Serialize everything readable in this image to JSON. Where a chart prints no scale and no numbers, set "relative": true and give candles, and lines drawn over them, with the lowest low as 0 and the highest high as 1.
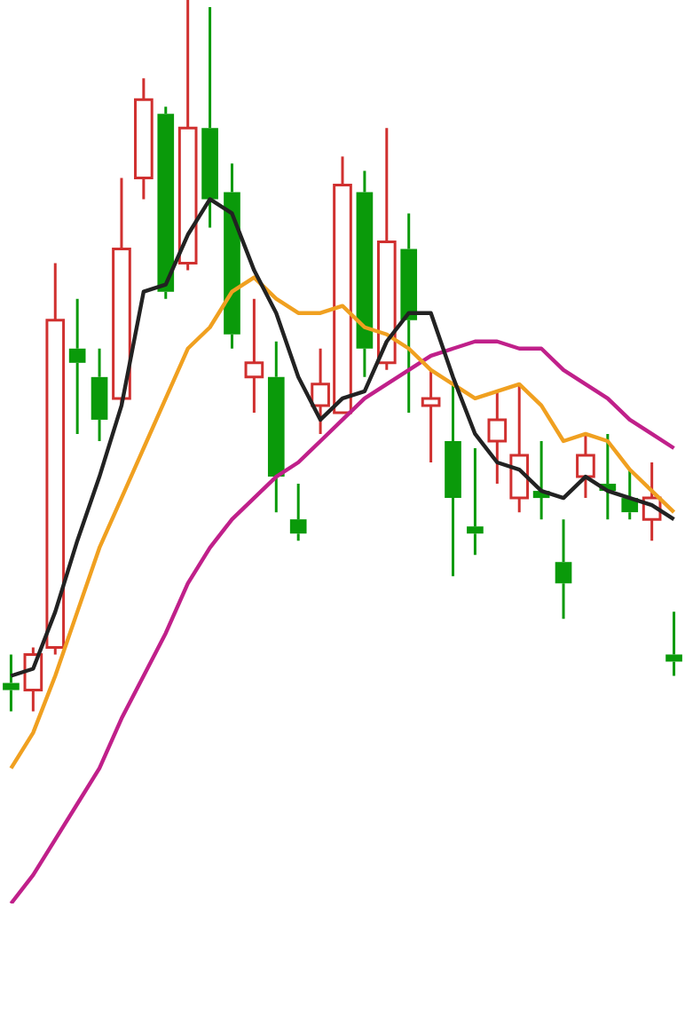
{
  "chart_data": {
    "type": "candlestick",
    "relative": true,
    "categories": [
      null,
      null,
      null,
      null,
      null,
      null,
      null,
      null,
      null,
      null,
      null,
      null,
      null,
      null,
      null,
      null,
      null,
      null,
      null,
      null,
      null,
      null,
      null,
      null,
      null,
      null,
      null,
      null,
      null,
      null,
      null
    ],
    "ohlc": [
      [
        0.04,
        0.08,
        0,
        0.03
      ],
      [
        0.03,
        0.09,
        0,
        0.08
      ],
      [
        0.09,
        0.63,
        0.08,
        0.55
      ],
      [
        0.51,
        0.58,
        0.39,
        0.49
      ],
      [
        0.47,
        0.51,
        0.38,
        0.41
      ],
      [
        0.44,
        0.75,
        0.43,
        0.65
      ],
      [
        0.75,
        0.89,
        0.72,
        0.86
      ],
      [
        0.84,
        0.85,
        0.58,
        0.59
      ],
      [
        0.63,
        1,
        0.62,
        0.82
      ],
      [
        0.82,
        0.99,
        0.68,
        0.72
      ],
      [
        0.73,
        0.77,
        0.51,
        0.53
      ],
      [
        0.47,
        0.58,
        0.42,
        0.49
      ],
      [
        0.47,
        0.52,
        0.28,
        0.33
      ],
      [
        0.27,
        0.32,
        0.24,
        0.25
      ],
      [
        0.43,
        0.51,
        0.39,
        0.46
      ],
      [
        0.42,
        0.78,
        0.42,
        0.74
      ],
      [
        0.73,
        0.76,
        0.47,
        0.51
      ],
      [
        0.49,
        0.82,
        0.48,
        0.66
      ],
      [
        0.65,
        0.7,
        0.42,
        0.55
      ],
      [
        0.43,
        0.48,
        0.35,
        0.44
      ],
      [
        0.38,
        0.46,
        0.19,
        0.3
      ],
      [
        0.26,
        0.37,
        0.22,
        0.25
      ],
      [
        0.38,
        0.45,
        0.32,
        0.41
      ],
      [
        0.3,
        0.46,
        0.28,
        0.36
      ],
      [
        0.31,
        0.38,
        0.27,
        0.3
      ],
      [
        0.21,
        0.27,
        0.13,
        0.18
      ],
      [
        0.33,
        0.39,
        0.3,
        0.36
      ],
      [
        0.32,
        0.39,
        0.27,
        0.31
      ],
      [
        0.3,
        0.34,
        0.27,
        0.28
      ],
      [
        0.27,
        0.35,
        0.24,
        0.3
      ],
      [
        0.08,
        0.14,
        0.05,
        0.07
      ]
    ],
    "colors": [
      "#0a9a0a",
      "#d0302f",
      "#d0302f",
      "#0a9a0a",
      "#0a9a0a",
      "#d0302f",
      "#d0302f",
      "#0a9a0a",
      "#d0302f",
      "#0a9a0a",
      "#0a9a0a",
      "#d0302f",
      "#0a9a0a",
      "#0a9a0a",
      "#d0302f",
      "#d0302f",
      "#0a9a0a",
      "#d0302f",
      "#0a9a0a",
      "#d0302f",
      "#0a9a0a",
      "#0a9a0a",
      "#d0302f",
      "#d0302f",
      "#0a9a0a",
      "#0a9a0a",
      "#d0302f",
      "#0a9a0a",
      "#0a9a0a",
      "#d0302f",
      "#0a9a0a"
    ],
    "series": [
      {
        "type": "line",
        "color": "#222222",
        "values": [
          0.05,
          0.06,
          0.14,
          0.24,
          0.33,
          0.43,
          0.59,
          0.6,
          0.67,
          0.72,
          0.7,
          0.62,
          0.56,
          0.47,
          0.41,
          0.44,
          0.45,
          0.52,
          0.56,
          0.56,
          0.47,
          0.39,
          0.35,
          0.34,
          0.31,
          0.3,
          0.33,
          0.31,
          0.3,
          0.29,
          0.27
        ]
      },
      {
        "type": "line",
        "color": "#f0a020",
        "values": [
          -0.08,
          -0.03,
          0.05,
          0.14,
          0.23,
          0.3,
          0.37,
          0.44,
          0.51,
          0.54,
          0.59,
          0.61,
          0.58,
          0.56,
          0.56,
          0.57,
          0.54,
          0.53,
          0.51,
          0.48,
          0.46,
          0.44,
          0.45,
          0.46,
          0.43,
          0.38,
          0.39,
          0.38,
          0.34,
          0.31,
          0.28
        ]
      },
      {
        "type": "line",
        "color": "#c0208a",
        "values": [
          -0.27,
          -0.23,
          -0.18,
          -0.13,
          -0.08,
          -0.01,
          0.05,
          0.11,
          0.18,
          0.23,
          0.27,
          0.3,
          0.33,
          0.35,
          0.38,
          0.41,
          0.44,
          0.46,
          0.48,
          0.5,
          0.51,
          0.52,
          0.52,
          0.51,
          0.51,
          0.48,
          0.46,
          0.44,
          0.41,
          0.39,
          0.37
        ]
      }
    ],
    "legend": false,
    "marker": "none"
  }
}
